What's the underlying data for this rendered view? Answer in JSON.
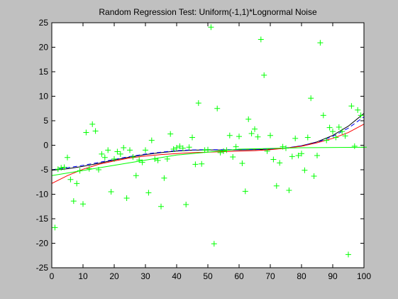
{
  "chart_data": {
    "type": "scatter",
    "title": "Random Regression Test: Uniform(-1,1)*Lognormal Noise",
    "xlabel": "",
    "ylabel": "",
    "xlim": [
      0,
      100
    ],
    "ylim": [
      -25,
      25
    ],
    "xticks": [
      0,
      10,
      20,
      30,
      40,
      50,
      60,
      70,
      80,
      90,
      100
    ],
    "yticks": [
      -25,
      -20,
      -15,
      -10,
      -5,
      0,
      5,
      10,
      15,
      20,
      25
    ],
    "grid": false,
    "background": "#c0c0c0",
    "plot_background": "#ffffff",
    "points": {
      "marker": "plus",
      "color": "#00ff00",
      "x": [
        1,
        2,
        3,
        4,
        5,
        6,
        7,
        8,
        9,
        10,
        11,
        12,
        13,
        14,
        15,
        16,
        17,
        18,
        19,
        20,
        21,
        22,
        23,
        24,
        25,
        26,
        27,
        28,
        29,
        30,
        31,
        32,
        33,
        34,
        35,
        36,
        37,
        38,
        39,
        40,
        41,
        42,
        43,
        44,
        45,
        46,
        47,
        48,
        49,
        50,
        51,
        52,
        53,
        54,
        55,
        56,
        57,
        58,
        59,
        60,
        61,
        62,
        63,
        64,
        65,
        66,
        67,
        68,
        69,
        70,
        71,
        72,
        73,
        74,
        75,
        76,
        77,
        78,
        79,
        80,
        81,
        82,
        83,
        84,
        85,
        86,
        87,
        88,
        89,
        90,
        91,
        92,
        93,
        94,
        95,
        96,
        97,
        98,
        99,
        100
      ],
      "y": [
        -16.8,
        -4.9,
        -4.6,
        -4.5,
        -2.5,
        -7.0,
        -11.4,
        -7.8,
        -5.2,
        -12.0,
        2.6,
        -4.8,
        4.3,
        2.9,
        -5.0,
        -1.8,
        -2.5,
        -1.0,
        -9.5,
        -2.8,
        -1.3,
        -1.8,
        -0.5,
        -10.8,
        -1.0,
        -2.4,
        -6.2,
        -3.0,
        -3.5,
        -1.0,
        -9.7,
        1.0,
        -2.8,
        -3.1,
        -12.5,
        -6.7,
        -2.8,
        2.3,
        -0.8,
        -0.5,
        -0.2,
        -0.6,
        -12.1,
        -0.4,
        1.6,
        -3.9,
        8.6,
        -3.8,
        -1.0,
        -0.9,
        24.1,
        -20.1,
        7.5,
        -1.5,
        -1.2,
        -1.0,
        2.0,
        -2.4,
        -0.3,
        1.8,
        -3.7,
        -9.4,
        5.3,
        2.4,
        3.3,
        1.7,
        21.6,
        14.3,
        -1.2,
        2.0,
        -2.9,
        -8.3,
        -3.6,
        -0.3,
        -0.6,
        -9.2,
        -2.3,
        1.4,
        -2.1,
        -1.7,
        -5.1,
        1.6,
        9.6,
        -6.3,
        -2.1,
        20.9,
        6.1,
        1.0,
        3.6,
        2.8,
        1.6,
        3.7,
        2.8,
        1.9,
        -22.3,
        8.0,
        -0.2,
        7.2,
        6.1,
        -0.4
      ]
    },
    "series": [
      {
        "color": "#000000",
        "style": "solid",
        "x": [
          0,
          5,
          10,
          15,
          20,
          25,
          30,
          35,
          40,
          45,
          50,
          55,
          60,
          65,
          70,
          75,
          80,
          85,
          90,
          95,
          100
        ],
        "y": [
          -5.1,
          -4.8,
          -4.3,
          -3.7,
          -3.0,
          -2.4,
          -1.9,
          -1.5,
          -1.2,
          -1.0,
          -0.95,
          -0.95,
          -0.95,
          -0.9,
          -0.8,
          -0.6,
          -0.1,
          0.7,
          2.0,
          3.9,
          6.5
        ]
      },
      {
        "color": "#0000ff",
        "style": "dashed",
        "x": [
          0,
          5,
          10,
          15,
          20,
          25,
          30,
          35,
          40,
          45,
          50,
          55,
          60,
          65,
          70,
          75,
          80,
          85,
          90,
          95,
          100
        ],
        "y": [
          -5.0,
          -4.6,
          -4.1,
          -3.5,
          -2.9,
          -2.3,
          -1.8,
          -1.4,
          -1.1,
          -0.95,
          -0.9,
          -0.9,
          -0.9,
          -0.85,
          -0.75,
          -0.55,
          -0.1,
          0.6,
          1.8,
          3.5,
          5.8
        ]
      },
      {
        "color": "#ff0000",
        "style": "solid",
        "x": [
          0,
          5,
          10,
          15,
          20,
          25,
          30,
          35,
          40,
          45,
          50,
          55,
          60,
          65,
          70,
          75,
          80,
          85,
          90,
          95,
          100
        ],
        "y": [
          -7.8,
          -6.2,
          -4.9,
          -3.9,
          -3.2,
          -2.6,
          -2.2,
          -1.9,
          -1.7,
          -1.5,
          -1.4,
          -1.3,
          -1.2,
          -1.1,
          -0.9,
          -0.6,
          -0.2,
          0.5,
          1.4,
          2.6,
          4.3
        ]
      },
      {
        "color": "#00ff00",
        "style": "solid",
        "x": [
          0,
          20,
          40,
          60,
          80,
          100
        ],
        "y": [
          -6.2,
          -4.1,
          -2.0,
          -0.8,
          -0.5,
          -0.4
        ]
      }
    ]
  }
}
